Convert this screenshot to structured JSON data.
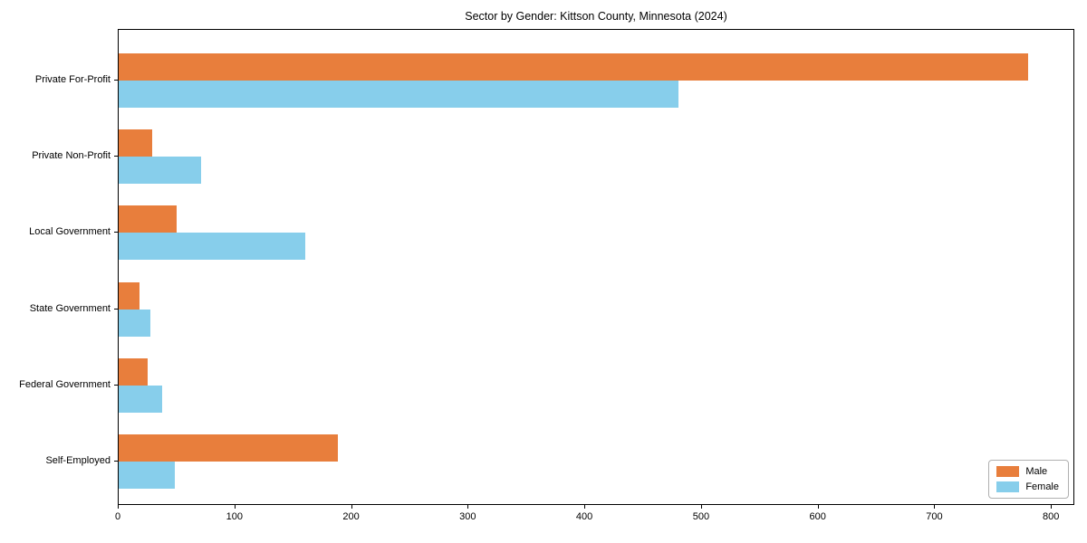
{
  "chart_data": {
    "type": "bar",
    "orientation": "horizontal",
    "title": "Sector by Gender: Kittson County, Minnesota (2024)",
    "categories": [
      "Private For-Profit",
      "Private Non-Profit",
      "Local Government",
      "State Government",
      "Federal Government",
      "Self-Employed"
    ],
    "series": [
      {
        "name": "Male",
        "color": "#e87e3c",
        "values": [
          781,
          29,
          50,
          18,
          25,
          188
        ]
      },
      {
        "name": "Female",
        "color": "#87ceeb",
        "values": [
          481,
          71,
          160,
          27,
          37,
          48
        ]
      }
    ],
    "xlabel": "",
    "ylabel": "",
    "xlim": [
      0,
      820
    ],
    "xticks": [
      0,
      100,
      200,
      300,
      400,
      500,
      600,
      700,
      800
    ],
    "grid": false,
    "legend_position": "lower right"
  }
}
